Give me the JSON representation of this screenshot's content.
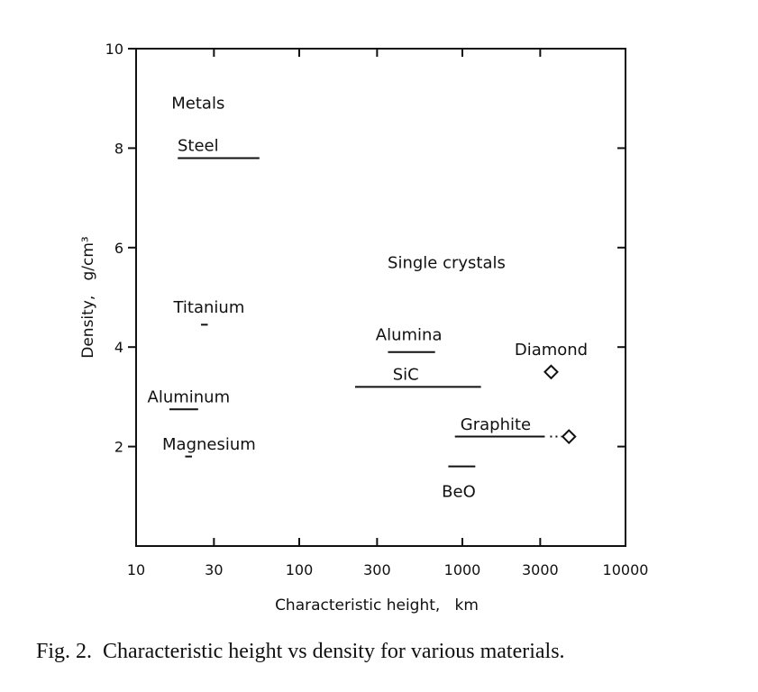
{
  "chart_data": {
    "type": "scatter",
    "title": "",
    "xlabel": "Characteristic height,   km",
    "ylabel": "Density,   g/cm³",
    "xscale": "log",
    "xlim": [
      10,
      10000
    ],
    "ylim": [
      0,
      10
    ],
    "xticks": [
      10,
      30,
      100,
      300,
      1000,
      3000,
      10000
    ],
    "xtick_labels": [
      "10",
      "30",
      "100",
      "300",
      "1000",
      "3000",
      "10000"
    ],
    "yticks": [
      2,
      4,
      6,
      8,
      10
    ],
    "ytick_labels": [
      "2",
      "4",
      "6",
      "8",
      "10"
    ],
    "grid": false,
    "group_labels": [
      {
        "text": "Metals",
        "x": 24,
        "y": 8.9
      },
      {
        "text": "Single crystals",
        "x": 800,
        "y": 5.7
      }
    ],
    "ranges": [
      {
        "name": "Steel",
        "x_min": 18,
        "x_max": 57,
        "y": 7.8,
        "label_x": 24,
        "label_y": 8.05
      },
      {
        "name": "Titanium",
        "x_min": 25,
        "x_max": 27.5,
        "y": 4.45,
        "label_x": 28,
        "label_y": 4.8
      },
      {
        "name": "Aluminum",
        "x_min": 16,
        "x_max": 24,
        "y": 2.75,
        "label_x": 21,
        "label_y": 3.0
      },
      {
        "name": "Magnesium",
        "x_min": 20,
        "x_max": 22,
        "y": 1.8,
        "label_x": 28,
        "label_y": 2.05
      },
      {
        "name": "Alumina",
        "x_min": 350,
        "x_max": 680,
        "y": 3.9,
        "label_x": 470,
        "label_y": 4.25
      },
      {
        "name": "SiC",
        "x_min": 220,
        "x_max": 1300,
        "y": 3.2,
        "label_x": 450,
        "label_y": 3.45
      },
      {
        "name": "Graphite",
        "x_min": 900,
        "x_max": 3200,
        "y": 2.2,
        "label_x": 1600,
        "label_y": 2.45
      },
      {
        "name": "BeO",
        "x_min": 820,
        "x_max": 1200,
        "y": 1.6,
        "label_x": 950,
        "label_y": 1.1
      }
    ],
    "points": [
      {
        "name": "Diamond",
        "x": 3500,
        "y": 3.5,
        "marker": "diamond",
        "label_x": 3500,
        "label_y": 3.95
      },
      {
        "name": "Graphite",
        "x": 4500,
        "y": 2.2,
        "marker": "diamond"
      }
    ],
    "connectors": [
      {
        "from": "Graphite range",
        "x_start": 3200,
        "x_end": 4500,
        "y": 2.2,
        "style": "dotted"
      }
    ]
  },
  "caption": "Fig. 2.  Characteristic height vs density for various materials."
}
